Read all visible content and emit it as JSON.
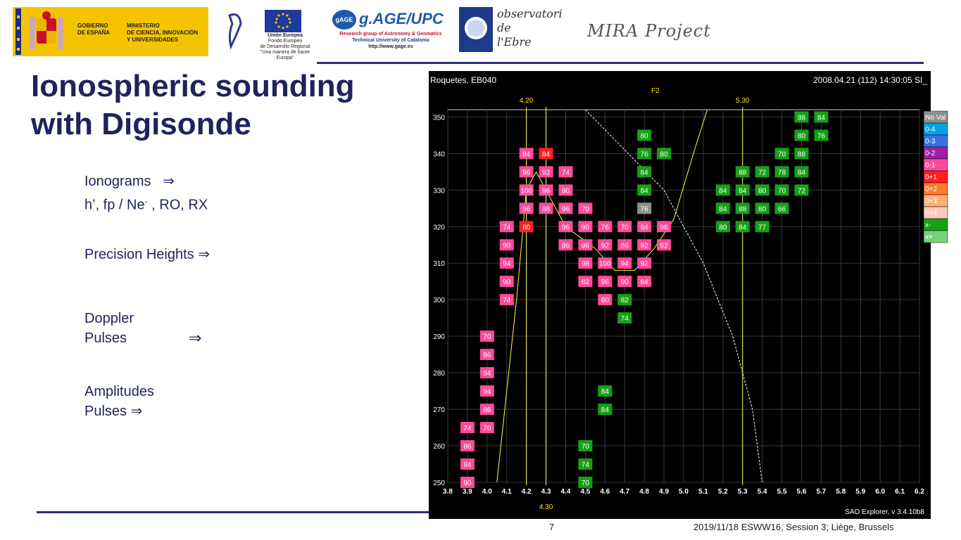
{
  "header": {
    "logo_gobierno": {
      "line1": "GOBIERNO",
      "line2": "DE ESPAÑA",
      "line3": "MINISTERIO",
      "line4": "DE CIENCIA, INNOVACIÓN",
      "line5": "Y UNIVERSIDADES"
    },
    "logo_ue": {
      "title": "Unión Europea",
      "line1": "Fondo Europeo",
      "line2": "de Desarrollo Regional",
      "line3": "\"Una manera de hacer Europa\""
    },
    "logo_gage": {
      "badge": "gAGE",
      "name": "g.AGE/UPC",
      "line1": "Research group of Astronomy & Geomatics",
      "line2": "Technical University of Catalonia",
      "line3": "http://www.gage.es"
    },
    "logo_obs": {
      "line1": "observatori",
      "line2": "de",
      "line3": "l'Ebre"
    },
    "project": "MIRA Project"
  },
  "slide": {
    "title_line1": "Ionospheric sounding",
    "title_line2": "with Digisonde",
    "ionograms_label": "Ionograms",
    "params_prefix": "h’, fp / Ne",
    "params_sup": "-",
    "params_suffix": " , RO, RX",
    "precision": "Precision Heights",
    "doppler_line1": "Doppler",
    "doppler_line2": "Pulses",
    "amplitudes_line1": "Amplitudes",
    "amplitudes_line2": "Pulses",
    "arrow": "⇒"
  },
  "footer": {
    "page": "7",
    "event": "2019/11/18 ESWW16, Session 3; Liège, Brussels"
  },
  "chart_data": {
    "type": "scatter",
    "station": "Roquetes, EB040",
    "timestamp": "2008.04.21 (112) 14:30:05 SI_",
    "layer_label": "F2",
    "software": "SAO Explorer, v 3.4.10b8",
    "marker_top_a": "4.20",
    "marker_top_b": "5.30",
    "marker_bottom": "4.30",
    "x": {
      "ticks": [
        "3.8",
        "3.9",
        "4.0",
        "4.1",
        "4.2",
        "4.3",
        "4.4",
        "4.5",
        "4.6",
        "4.7",
        "4.8",
        "4.9",
        "5.0",
        "5.1",
        "5.2",
        "5.3",
        "5.4",
        "5.5",
        "5.6",
        "5.7",
        "5.8",
        "5.9",
        "6.0",
        "6.1",
        "6.2"
      ],
      "range": [
        3.8,
        6.2
      ]
    },
    "y": {
      "ticks": [
        "250",
        "260",
        "270",
        "280",
        "290",
        "300",
        "310",
        "320",
        "330",
        "340",
        "350"
      ],
      "range": [
        250,
        352
      ]
    },
    "legend": [
      "No Val",
      "0-4",
      "0-3",
      "0-2",
      "0-1",
      "0+1",
      "0+2",
      "0+3",
      "0+4",
      "x-",
      "x+"
    ],
    "legend_colors": [
      "#909090",
      "#00a2e8",
      "#3c6fe0",
      "#a020a0",
      "#ff4a9a",
      "#ff1f1f",
      "#ff7a30",
      "#ffb070",
      "#ffc8b8",
      "#16a016",
      "#7cd07c"
    ],
    "points": [
      {
        "f": 4.2,
        "h": 340,
        "v": "84",
        "c": "#ff4a9a"
      },
      {
        "f": 4.3,
        "h": 340,
        "v": "84",
        "c": "#ff1f1f"
      },
      {
        "f": 4.2,
        "h": 335,
        "v": "96",
        "c": "#ff4a9a"
      },
      {
        "f": 4.3,
        "h": 335,
        "v": "92",
        "c": "#ff4a9a"
      },
      {
        "f": 4.4,
        "h": 335,
        "v": "74",
        "c": "#ff4a9a"
      },
      {
        "f": 4.2,
        "h": 330,
        "v": "100",
        "c": "#ff4a9a"
      },
      {
        "f": 4.3,
        "h": 330,
        "v": "96",
        "c": "#ff4a9a"
      },
      {
        "f": 4.4,
        "h": 330,
        "v": "90",
        "c": "#ff4a9a"
      },
      {
        "f": 4.2,
        "h": 325,
        "v": "96",
        "c": "#ff4a9a"
      },
      {
        "f": 4.3,
        "h": 325,
        "v": "88",
        "c": "#ff4a9a"
      },
      {
        "f": 4.4,
        "h": 325,
        "v": "96",
        "c": "#ff4a9a"
      },
      {
        "f": 4.5,
        "h": 325,
        "v": "70",
        "c": "#ff4a9a"
      },
      {
        "f": 4.1,
        "h": 320,
        "v": "74",
        "c": "#ff4a9a"
      },
      {
        "f": 4.2,
        "h": 320,
        "v": "80",
        "c": "#ff1f1f"
      },
      {
        "f": 4.4,
        "h": 320,
        "v": "96",
        "c": "#ff4a9a"
      },
      {
        "f": 4.5,
        "h": 320,
        "v": "90",
        "c": "#ff4a9a"
      },
      {
        "f": 4.6,
        "h": 320,
        "v": "76",
        "c": "#ff4a9a"
      },
      {
        "f": 4.7,
        "h": 320,
        "v": "70",
        "c": "#ff4a9a"
      },
      {
        "f": 4.8,
        "h": 320,
        "v": "84",
        "c": "#ff4a9a"
      },
      {
        "f": 4.9,
        "h": 320,
        "v": "96",
        "c": "#ff4a9a"
      },
      {
        "f": 4.1,
        "h": 315,
        "v": "90",
        "c": "#ff4a9a"
      },
      {
        "f": 4.4,
        "h": 315,
        "v": "86",
        "c": "#ff4a9a"
      },
      {
        "f": 4.5,
        "h": 315,
        "v": "96",
        "c": "#ff4a9a"
      },
      {
        "f": 4.6,
        "h": 315,
        "v": "92",
        "c": "#ff4a9a"
      },
      {
        "f": 4.7,
        "h": 315,
        "v": "86",
        "c": "#ff4a9a"
      },
      {
        "f": 4.8,
        "h": 315,
        "v": "92",
        "c": "#ff4a9a"
      },
      {
        "f": 4.9,
        "h": 315,
        "v": "92",
        "c": "#ff4a9a"
      },
      {
        "f": 4.1,
        "h": 310,
        "v": "94",
        "c": "#ff4a9a"
      },
      {
        "f": 4.5,
        "h": 310,
        "v": "98",
        "c": "#ff4a9a"
      },
      {
        "f": 4.6,
        "h": 310,
        "v": "100",
        "c": "#ff4a9a"
      },
      {
        "f": 4.7,
        "h": 310,
        "v": "94",
        "c": "#ff4a9a"
      },
      {
        "f": 4.8,
        "h": 310,
        "v": "92",
        "c": "#ff4a9a"
      },
      {
        "f": 4.1,
        "h": 305,
        "v": "90",
        "c": "#ff4a9a"
      },
      {
        "f": 4.5,
        "h": 305,
        "v": "82",
        "c": "#ff4a9a"
      },
      {
        "f": 4.6,
        "h": 305,
        "v": "96",
        "c": "#ff4a9a"
      },
      {
        "f": 4.7,
        "h": 305,
        "v": "90",
        "c": "#ff4a9a"
      },
      {
        "f": 4.8,
        "h": 305,
        "v": "84",
        "c": "#ff4a9a"
      },
      {
        "f": 4.1,
        "h": 300,
        "v": "74",
        "c": "#ff4a9a"
      },
      {
        "f": 4.6,
        "h": 300,
        "v": "80",
        "c": "#ff4a9a"
      },
      {
        "f": 4.7,
        "h": 300,
        "v": "82",
        "c": "#16a016"
      },
      {
        "f": 4.7,
        "h": 295,
        "v": "74",
        "c": "#16a016"
      },
      {
        "f": 4.0,
        "h": 290,
        "v": "70",
        "c": "#ff4a9a"
      },
      {
        "f": 4.0,
        "h": 285,
        "v": "86",
        "c": "#ff4a9a"
      },
      {
        "f": 4.0,
        "h": 280,
        "v": "94",
        "c": "#ff4a9a"
      },
      {
        "f": 4.0,
        "h": 275,
        "v": "94",
        "c": "#ff4a9a"
      },
      {
        "f": 4.0,
        "h": 270,
        "v": "86",
        "c": "#ff4a9a"
      },
      {
        "f": 3.9,
        "h": 265,
        "v": "74",
        "c": "#ff4a9a"
      },
      {
        "f": 4.0,
        "h": 265,
        "v": "70",
        "c": "#ff4a9a"
      },
      {
        "f": 3.9,
        "h": 260,
        "v": "86",
        "c": "#ff4a9a"
      },
      {
        "f": 3.9,
        "h": 255,
        "v": "94",
        "c": "#ff4a9a"
      },
      {
        "f": 3.9,
        "h": 250,
        "v": "90",
        "c": "#ff4a9a"
      },
      {
        "f": 4.6,
        "h": 275,
        "v": "84",
        "c": "#16a016"
      },
      {
        "f": 4.6,
        "h": 270,
        "v": "84",
        "c": "#16a016"
      },
      {
        "f": 4.5,
        "h": 260,
        "v": "70",
        "c": "#16a016"
      },
      {
        "f": 4.5,
        "h": 255,
        "v": "74",
        "c": "#16a016"
      },
      {
        "f": 4.5,
        "h": 250,
        "v": "70",
        "c": "#16a016"
      },
      {
        "f": 4.8,
        "h": 345,
        "v": "80",
        "c": "#16a016"
      },
      {
        "f": 4.8,
        "h": 340,
        "v": "76",
        "c": "#16a016"
      },
      {
        "f": 4.9,
        "h": 340,
        "v": "80",
        "c": "#16a016"
      },
      {
        "f": 4.8,
        "h": 335,
        "v": "84",
        "c": "#16a016"
      },
      {
        "f": 4.8,
        "h": 330,
        "v": "84",
        "c": "#16a016"
      },
      {
        "f": 4.8,
        "h": 325,
        "v": "76",
        "c": "#909090"
      },
      {
        "f": 5.2,
        "h": 330,
        "v": "84",
        "c": "#16a016"
      },
      {
        "f": 5.3,
        "h": 330,
        "v": "84",
        "c": "#16a016"
      },
      {
        "f": 5.4,
        "h": 330,
        "v": "80",
        "c": "#16a016"
      },
      {
        "f": 5.5,
        "h": 330,
        "v": "70",
        "c": "#16a016"
      },
      {
        "f": 5.6,
        "h": 330,
        "v": "72",
        "c": "#16a016"
      },
      {
        "f": 5.2,
        "h": 325,
        "v": "84",
        "c": "#16a016"
      },
      {
        "f": 5.3,
        "h": 325,
        "v": "88",
        "c": "#16a016"
      },
      {
        "f": 5.4,
        "h": 325,
        "v": "80",
        "c": "#16a016"
      },
      {
        "f": 5.5,
        "h": 325,
        "v": "66",
        "c": "#16a016"
      },
      {
        "f": 5.2,
        "h": 320,
        "v": "80",
        "c": "#16a016"
      },
      {
        "f": 5.3,
        "h": 320,
        "v": "84",
        "c": "#16a016"
      },
      {
        "f": 5.4,
        "h": 320,
        "v": "77",
        "c": "#16a016"
      },
      {
        "f": 5.3,
        "h": 335,
        "v": "88",
        "c": "#16a016"
      },
      {
        "f": 5.4,
        "h": 335,
        "v": "72",
        "c": "#16a016"
      },
      {
        "f": 5.5,
        "h": 335,
        "v": "78",
        "c": "#16a016"
      },
      {
        "f": 5.6,
        "h": 335,
        "v": "84",
        "c": "#16a016"
      },
      {
        "f": 5.5,
        "h": 340,
        "v": "70",
        "c": "#16a016"
      },
      {
        "f": 5.6,
        "h": 340,
        "v": "88",
        "c": "#16a016"
      },
      {
        "f": 5.6,
        "h": 345,
        "v": "80",
        "c": "#16a016"
      },
      {
        "f": 5.7,
        "h": 345,
        "v": "76",
        "c": "#16a016"
      },
      {
        "f": 5.6,
        "h": 350,
        "v": "88",
        "c": "#16a016"
      },
      {
        "f": 5.7,
        "h": 350,
        "v": "84",
        "c": "#16a016"
      }
    ],
    "yellow_curve": [
      [
        4.05,
        250
      ],
      [
        4.15,
        300
      ],
      [
        4.2,
        330
      ],
      [
        4.25,
        335
      ],
      [
        4.3,
        330
      ],
      [
        4.4,
        320
      ],
      [
        4.55,
        314
      ],
      [
        4.65,
        308
      ],
      [
        4.75,
        308
      ],
      [
        4.85,
        314
      ],
      [
        4.95,
        322
      ],
      [
        5.05,
        340
      ],
      [
        5.12,
        352
      ]
    ],
    "white_curve": [
      [
        4.5,
        352
      ],
      [
        4.9,
        330
      ],
      [
        5.1,
        310
      ],
      [
        5.25,
        290
      ],
      [
        5.35,
        270
      ],
      [
        5.4,
        250
      ]
    ]
  }
}
